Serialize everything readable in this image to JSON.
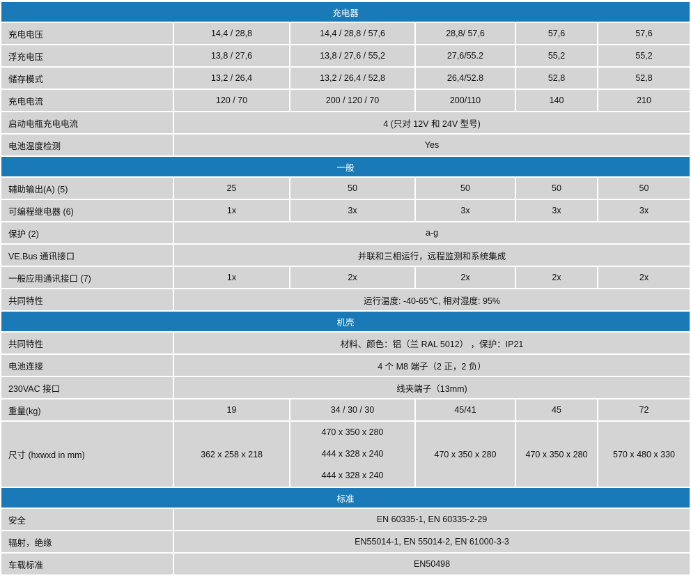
{
  "colors": {
    "section_header": "#1a7ab8",
    "cell": "#d3d4d3"
  },
  "sections": [
    {
      "title": "充电器",
      "rows": [
        {
          "label": "充电电压",
          "cells": [
            "14,4 / 28,8",
            "14,4 / 28,8 / 57,6",
            "28,8/ 57,6",
            "57,6",
            "57,6"
          ]
        },
        {
          "label": "浮充电压",
          "cells": [
            "13,8 / 27,6",
            "13,8 / 27,6 / 55,2",
            "27,6/55.2",
            "55,2",
            "55,2"
          ]
        },
        {
          "label": "储存模式",
          "cells": [
            "13,2 / 26,4",
            "13,2 / 26,4 / 52,8",
            "26,4/52.8",
            "52,8",
            "52,8"
          ]
        },
        {
          "label": "充电电流",
          "cells": [
            "120 / 70",
            "200 / 120 / 70",
            "200/110",
            "140",
            "210"
          ]
        },
        {
          "label": "启动电瓶充电电流",
          "span": "4 (只对 12V 和  24V  型号)"
        },
        {
          "label": "电池温度检测",
          "span": "Yes"
        }
      ]
    },
    {
      "title": "一般",
      "rows": [
        {
          "label": "辅助输出(A)    (5)",
          "cells": [
            "25",
            "50",
            "50",
            "50",
            "50"
          ]
        },
        {
          "label": "可编程继电器    (6)",
          "cells": [
            "1x",
            "3x",
            "3x",
            "3x",
            "3x"
          ]
        },
        {
          "label": "保护   (2)",
          "span": "a-g"
        },
        {
          "label": "VE.Bus 通讯接口",
          "span": "并联和三相运行，远程监测和系统集成"
        },
        {
          "label": "一般应用通讯接口 (7)",
          "cells": [
            "1x",
            "2x",
            "2x",
            "2x",
            "2x"
          ]
        },
        {
          "label": "共同特性",
          "span": "运行温度: -40-65℃, 相对湿度: 95%"
        }
      ]
    },
    {
      "title": "机壳",
      "rows": [
        {
          "label": "共同特性",
          "span": "材料、颜色：铝（兰  RAL 5012） ，保护：IP21"
        },
        {
          "label": "电池连接",
          "span": "4 个 M8 端子（2 正，2 负）"
        },
        {
          "label": "230VAC 接口",
          "span": "线夹端子（13mm)"
        },
        {
          "label": "重量(kg)",
          "cells": [
            "19",
            "34 / 30 / 30",
            "45/41",
            "45",
            "72"
          ]
        }
      ]
    },
    {
      "title": "标准",
      "rows": [
        {
          "label": "安全",
          "span": "EN 60335-1, EN 60335-2-29"
        },
        {
          "label": "辐射，绝缘",
          "span": "EN55014-1, EN 55014-2, EN 61000-3-3"
        },
        {
          "label": "车载标准",
          "span": "EN50498"
        }
      ]
    }
  ],
  "dimensions": {
    "label": "尺寸  (hxwxd in mm)",
    "c1": "362 x 258 x 218",
    "c2": [
      "470 x 350 x 280",
      "444 x 328 x 240",
      "444 x 328 x 240"
    ],
    "c3": "470 x 350 x 280",
    "c4": "470 x 350 x 280",
    "c5": "570 x 480 x 330"
  }
}
